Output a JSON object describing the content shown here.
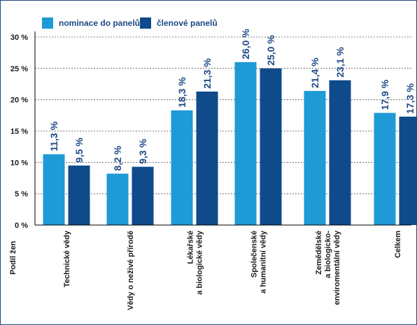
{
  "chart_data": {
    "type": "bar",
    "title": "",
    "ylabel": "Podíl žen",
    "xlabel": "",
    "ylim": [
      0,
      30
    ],
    "yticks": [
      0,
      5,
      10,
      15,
      20,
      25,
      30
    ],
    "ytick_labels": [
      "0 %",
      "5 %",
      "10 %",
      "15 %",
      "20 %",
      "25 %",
      "30 %"
    ],
    "grid": true,
    "legend_position": "top-left",
    "categories": [
      [
        "Technické vědy"
      ],
      [
        "Vědy o neživé přírodě"
      ],
      [
        "Lékařské",
        "a biologické vědy"
      ],
      [
        "Společenské",
        "a humanitní vědy"
      ],
      [
        "Zemědělské",
        "a biologicko-",
        "enviromentální vědy"
      ],
      [
        "Celkem"
      ]
    ],
    "series": [
      {
        "name": "nominace do panelů",
        "color": "#1e9ad6",
        "values": [
          11.3,
          8.2,
          18.3,
          26.0,
          21.4,
          17.9
        ],
        "labels": [
          "11,3 %",
          "8,2 %",
          "18,3 %",
          "26,0 %",
          "21,4 %",
          "17,9 %"
        ]
      },
      {
        "name": "členové panelů",
        "color": "#0f4a8a",
        "values": [
          9.5,
          9.3,
          21.3,
          25.0,
          23.1,
          17.3
        ],
        "labels": [
          "9,5 %",
          "9,3 %",
          "21,3 %",
          "25,0 %",
          "23,1 %",
          "17,3 %"
        ]
      }
    ]
  },
  "colors": {
    "label_text": "#1e4a86",
    "axis_text": "#1a1a1a",
    "grid": "#555555",
    "frame": "#1e4a86"
  }
}
